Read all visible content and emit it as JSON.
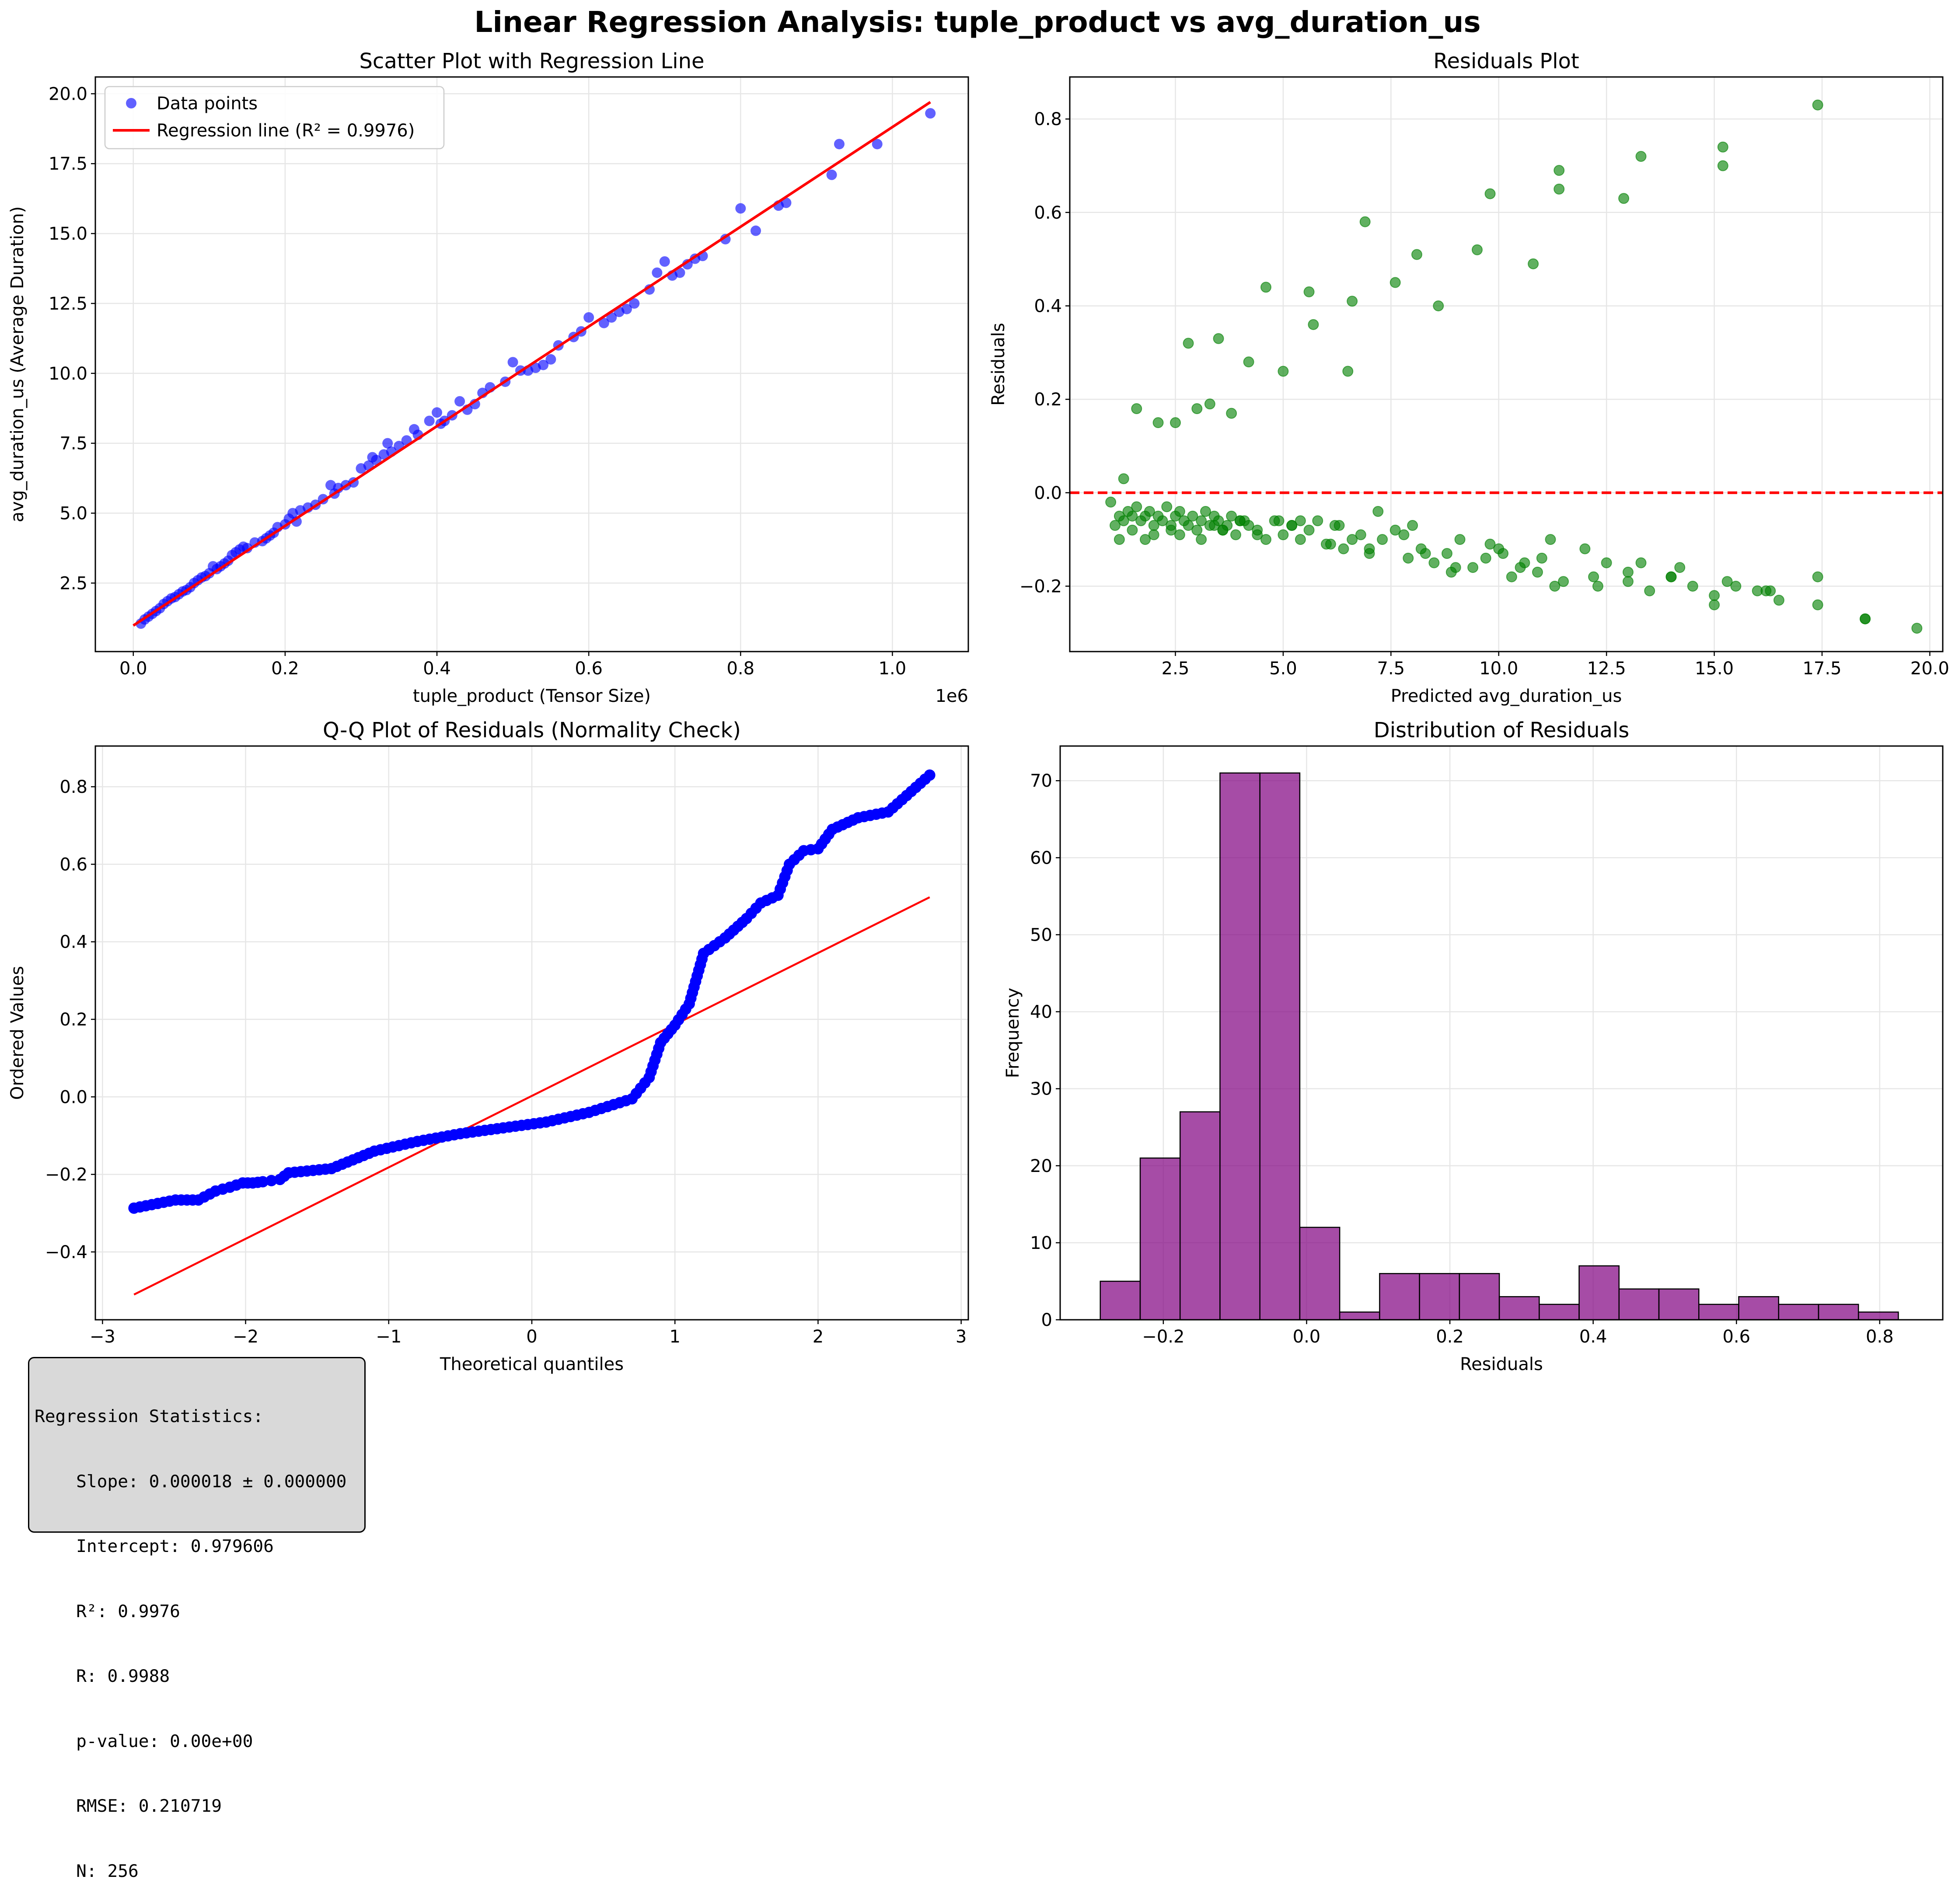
{
  "figure_title": "Linear Regression Analysis: tuple_product vs avg_duration_us",
  "stats_box": {
    "lines": [
      "Regression Statistics:",
      "    Slope: 0.000018 ± 0.000000",
      "    Intercept: 0.979606",
      "    R²: 0.9976",
      "    R: 0.9988",
      "    p-value: 0.00e+00",
      "    RMSE: 0.210719",
      "    N: 256"
    ]
  },
  "colors": {
    "scatter_points": "#0000ff",
    "regression_line": "#ff0000",
    "residual_points": "#008000",
    "zero_line": "#ff0000",
    "qq_points": "#0000ff",
    "qq_line": "#ff0000",
    "hist_bars": "#800080",
    "grid": "#e6e6e6"
  },
  "chart_data": [
    {
      "type": "scatter",
      "title": "Scatter Plot with Regression Line",
      "xlabel": "tuple_product (Tensor Size)",
      "ylabel": "avg_duration_us (Average Duration)",
      "x_offset_label": "1e6",
      "xlim": [
        -0.05,
        1.1
      ],
      "ylim": [
        0.05,
        20.6
      ],
      "xticks": [
        0.0,
        0.2,
        0.4,
        0.6,
        0.8,
        1.0
      ],
      "xtick_labels": [
        "0.0",
        "0.2",
        "0.4",
        "0.6",
        "0.8",
        "1.0"
      ],
      "yticks": [
        2.5,
        5.0,
        7.5,
        10.0,
        12.5,
        15.0,
        17.5,
        20.0
      ],
      "ytick_labels": [
        "2.5",
        "5.0",
        "7.5",
        "10.0",
        "12.5",
        "15.0",
        "17.5",
        "20.0"
      ],
      "grid": true,
      "legend_position": "top-left",
      "series": [
        {
          "name": "Data points",
          "kind": "scatter",
          "x": [
            0.01,
            0.015,
            0.02,
            0.025,
            0.03,
            0.035,
            0.04,
            0.045,
            0.05,
            0.055,
            0.06,
            0.065,
            0.07,
            0.075,
            0.08,
            0.085,
            0.09,
            0.095,
            0.1,
            0.105,
            0.11,
            0.115,
            0.12,
            0.125,
            0.13,
            0.135,
            0.14,
            0.145,
            0.15,
            0.16,
            0.17,
            0.175,
            0.18,
            0.185,
            0.19,
            0.2,
            0.205,
            0.21,
            0.215,
            0.22,
            0.23,
            0.24,
            0.25,
            0.26,
            0.265,
            0.27,
            0.28,
            0.29,
            0.3,
            0.31,
            0.315,
            0.32,
            0.33,
            0.335,
            0.34,
            0.35,
            0.36,
            0.37,
            0.375,
            0.39,
            0.4,
            0.405,
            0.41,
            0.42,
            0.43,
            0.44,
            0.45,
            0.46,
            0.47,
            0.49,
            0.5,
            0.51,
            0.52,
            0.53,
            0.54,
            0.55,
            0.56,
            0.58,
            0.59,
            0.6,
            0.62,
            0.63,
            0.64,
            0.65,
            0.66,
            0.68,
            0.69,
            0.7,
            0.71,
            0.72,
            0.73,
            0.74,
            0.75,
            0.78,
            0.8,
            0.82,
            0.85,
            0.86,
            0.92,
            0.93,
            0.98,
            1.05
          ],
          "y": [
            1.05,
            1.2,
            1.3,
            1.4,
            1.5,
            1.6,
            1.75,
            1.85,
            1.95,
            2.0,
            2.1,
            2.2,
            2.25,
            2.35,
            2.5,
            2.6,
            2.7,
            2.75,
            2.85,
            3.1,
            3.0,
            3.1,
            3.2,
            3.3,
            3.5,
            3.6,
            3.7,
            3.8,
            3.75,
            3.95,
            4.0,
            4.1,
            4.2,
            4.3,
            4.5,
            4.6,
            4.8,
            5.0,
            4.7,
            5.1,
            5.2,
            5.3,
            5.5,
            6.0,
            5.7,
            5.9,
            6.0,
            6.1,
            6.6,
            6.7,
            7.0,
            6.9,
            7.1,
            7.5,
            7.2,
            7.4,
            7.6,
            8.0,
            7.8,
            8.3,
            8.6,
            8.2,
            8.3,
            8.5,
            9.0,
            8.7,
            8.9,
            9.3,
            9.5,
            9.7,
            10.4,
            10.1,
            10.1,
            10.2,
            10.3,
            10.5,
            11.0,
            11.3,
            11.5,
            12.0,
            11.8,
            12.0,
            12.2,
            12.3,
            12.5,
            13.0,
            13.6,
            14.0,
            13.5,
            13.6,
            13.9,
            14.1,
            14.2,
            14.8,
            15.9,
            15.1,
            16.0,
            16.1,
            17.1,
            18.2,
            18.2,
            19.3
          ]
        },
        {
          "name": "Regression line (R² = 0.9976)",
          "kind": "line",
          "x": [
            0.0,
            1.05
          ],
          "y": [
            0.98,
            19.7
          ]
        }
      ]
    },
    {
      "type": "scatter",
      "title": "Residuals Plot",
      "xlabel": "Predicted avg_duration_us",
      "ylabel": "Residuals",
      "xlim": [
        0.05,
        20.3
      ],
      "ylim": [
        -0.34,
        0.89
      ],
      "xticks": [
        2.5,
        5.0,
        7.5,
        10.0,
        12.5,
        15.0,
        17.5,
        20.0
      ],
      "xtick_labels": [
        "2.5",
        "5.0",
        "7.5",
        "10.0",
        "12.5",
        "15.0",
        "17.5",
        "20.0"
      ],
      "yticks": [
        -0.2,
        0.0,
        0.2,
        0.4,
        0.6,
        0.8
      ],
      "ytick_labels": [
        "−0.2",
        "0.0",
        "0.2",
        "0.4",
        "0.6",
        "0.8"
      ],
      "grid": true,
      "reference_line": 0.0,
      "x": [
        1.0,
        1.1,
        1.2,
        1.3,
        1.4,
        1.5,
        1.6,
        1.7,
        1.8,
        1.9,
        2.0,
        2.1,
        2.2,
        2.3,
        2.4,
        2.5,
        2.6,
        2.7,
        2.8,
        2.9,
        3.0,
        3.1,
        3.2,
        3.3,
        3.4,
        3.5,
        3.6,
        3.7,
        3.8,
        3.9,
        4.0,
        4.2,
        4.4,
        4.6,
        4.8,
        5.0,
        5.2,
        5.4,
        5.6,
        5.8,
        6.0,
        6.2,
        6.4,
        6.6,
        6.8,
        7.0,
        7.3,
        7.6,
        7.9,
        8.2,
        8.5,
        8.8,
        9.1,
        9.4,
        9.7,
        10.0,
        10.3,
        10.6,
        10.9,
        11.2,
        11.5,
        12.0,
        12.5,
        13.0,
        13.5,
        14.0,
        14.5,
        15.0,
        15.5,
        16.0,
        16.5,
        17.4,
        18.5,
        19.7,
        1.3,
        1.6,
        2.1,
        2.5,
        2.8,
        3.0,
        3.3,
        3.5,
        3.8,
        4.2,
        4.6,
        5.0,
        5.6,
        5.7,
        6.5,
        6.6,
        6.9,
        7.6,
        8.1,
        8.6,
        9.5,
        9.8,
        10.8,
        11.4,
        11.4,
        12.9,
        13.3,
        15.2,
        15.2,
        17.4,
        1.5,
        2.0,
        2.4,
        3.1,
        3.6,
        4.1,
        4.4,
        5.2,
        6.1,
        7.0,
        7.8,
        8.3,
        9.0,
        10.1,
        11.0,
        12.2,
        13.0,
        14.0,
        15.0,
        16.2,
        1.2,
        1.8,
        2.6,
        3.4,
        4.0,
        4.9,
        5.4,
        6.3,
        7.2,
        8.0,
        8.9,
        9.8,
        10.5,
        11.3,
        12.3,
        13.3,
        14.2,
        15.3,
        16.3,
        17.4,
        18.5
      ],
      "y": [
        -0.02,
        -0.07,
        -0.05,
        -0.06,
        -0.04,
        -0.05,
        -0.03,
        -0.06,
        -0.05,
        -0.04,
        -0.07,
        -0.05,
        -0.06,
        -0.03,
        -0.08,
        -0.05,
        -0.04,
        -0.06,
        -0.07,
        -0.05,
        -0.08,
        -0.06,
        -0.04,
        -0.07,
        -0.05,
        -0.06,
        -0.08,
        -0.07,
        -0.05,
        -0.09,
        -0.06,
        -0.07,
        -0.08,
        -0.1,
        -0.06,
        -0.09,
        -0.07,
        -0.1,
        -0.08,
        -0.06,
        -0.11,
        -0.07,
        -0.12,
        -0.1,
        -0.09,
        -0.13,
        -0.1,
        -0.08,
        -0.14,
        -0.12,
        -0.15,
        -0.13,
        -0.1,
        -0.16,
        -0.14,
        -0.12,
        -0.18,
        -0.15,
        -0.17,
        -0.1,
        -0.19,
        -0.12,
        -0.15,
        -0.17,
        -0.21,
        -0.18,
        -0.2,
        -0.22,
        -0.2,
        -0.21,
        -0.23,
        -0.18,
        -0.27,
        -0.29,
        0.03,
        0.18,
        0.15,
        0.15,
        0.32,
        0.18,
        0.19,
        0.33,
        0.17,
        0.28,
        0.44,
        0.26,
        0.43,
        0.36,
        0.26,
        0.41,
        0.58,
        0.45,
        0.51,
        0.4,
        0.52,
        0.64,
        0.49,
        0.69,
        0.65,
        0.63,
        0.72,
        0.74,
        0.7,
        0.83,
        -0.08,
        -0.09,
        -0.07,
        -0.1,
        -0.08,
        -0.06,
        -0.09,
        -0.07,
        -0.11,
        -0.12,
        -0.09,
        -0.13,
        -0.16,
        -0.13,
        -0.14,
        -0.18,
        -0.19,
        -0.18,
        -0.24,
        -0.21,
        -0.1,
        -0.1,
        -0.09,
        -0.07,
        -0.06,
        -0.06,
        -0.06,
        -0.07,
        -0.04,
        -0.07,
        -0.17,
        -0.11,
        -0.16,
        -0.2,
        -0.2,
        -0.15,
        -0.16,
        -0.19,
        -0.21,
        -0.24,
        -0.27
      ]
    },
    {
      "type": "scatter",
      "title": "Q-Q Plot of Residuals (Normality Check)",
      "xlabel": "Theoretical quantiles",
      "ylabel": "Ordered Values",
      "xlim": [
        -3.05,
        3.05
      ],
      "ylim": [
        -0.575,
        0.905
      ],
      "xticks": [
        -3,
        -2,
        -1,
        0,
        1,
        2,
        3
      ],
      "xtick_labels": [
        "−3",
        "−2",
        "−1",
        "0",
        "1",
        "2",
        "3"
      ],
      "yticks": [
        -0.4,
        -0.2,
        0.0,
        0.2,
        0.4,
        0.6,
        0.8
      ],
      "ytick_labels": [
        "−0.4",
        "−0.2",
        "0.0",
        "0.2",
        "0.4",
        "0.6",
        "0.8"
      ],
      "grid": true,
      "qq_line": {
        "x": [
          -2.78,
          2.78
        ],
        "y": [
          -0.51,
          0.515
        ]
      },
      "sample_points": [
        [
          -2.78,
          -0.287
        ],
        [
          -2.49,
          -0.266
        ],
        [
          -2.33,
          -0.266
        ],
        [
          -2.21,
          -0.243
        ],
        [
          -2.11,
          -0.233
        ],
        [
          -2.02,
          -0.222
        ],
        [
          -1.95,
          -0.222
        ],
        [
          -1.88,
          -0.219
        ],
        [
          -1.82,
          -0.216
        ],
        [
          -1.76,
          -0.213
        ],
        [
          -1.7,
          -0.196
        ],
        [
          -1.4,
          -0.185
        ],
        [
          -1.1,
          -0.14
        ],
        [
          -0.8,
          -0.115
        ],
        [
          -0.5,
          -0.095
        ],
        [
          -0.2,
          -0.08
        ],
        [
          0.1,
          -0.065
        ],
        [
          0.4,
          -0.04
        ],
        [
          0.7,
          -0.005
        ],
        [
          0.82,
          0.05
        ],
        [
          0.9,
          0.14
        ],
        [
          1.0,
          0.185
        ],
        [
          1.1,
          0.24
        ],
        [
          1.2,
          0.37
        ],
        [
          1.35,
          0.41
        ],
        [
          1.5,
          0.46
        ],
        [
          1.6,
          0.5
        ],
        [
          1.72,
          0.52
        ],
        [
          1.8,
          0.6
        ],
        [
          1.9,
          0.635
        ],
        [
          2.0,
          0.64
        ],
        [
          2.1,
          0.69
        ],
        [
          2.28,
          0.72
        ],
        [
          2.49,
          0.735
        ],
        [
          2.78,
          0.83
        ]
      ]
    },
    {
      "type": "bar",
      "title": "Distribution of Residuals",
      "xlabel": "Residuals",
      "ylabel": "Frequency",
      "xlim": [
        -0.344,
        0.888
      ],
      "ylim": [
        0,
        74.5
      ],
      "xticks": [
        -0.2,
        0.0,
        0.2,
        0.4,
        0.6,
        0.8
      ],
      "xtick_labels": [
        "−0.2",
        "0.0",
        "0.2",
        "0.4",
        "0.6",
        "0.8"
      ],
      "yticks": [
        0,
        10,
        20,
        30,
        40,
        50,
        60,
        70
      ],
      "ytick_labels": [
        "0",
        "10",
        "20",
        "30",
        "40",
        "50",
        "60",
        "70"
      ],
      "grid": true,
      "bin_start": -0.288,
      "bin_width": 0.0557,
      "values": [
        5,
        21,
        27,
        71,
        71,
        12,
        1,
        6,
        6,
        6,
        3,
        2,
        7,
        4,
        4,
        2,
        3,
        2,
        2,
        1
      ]
    }
  ]
}
